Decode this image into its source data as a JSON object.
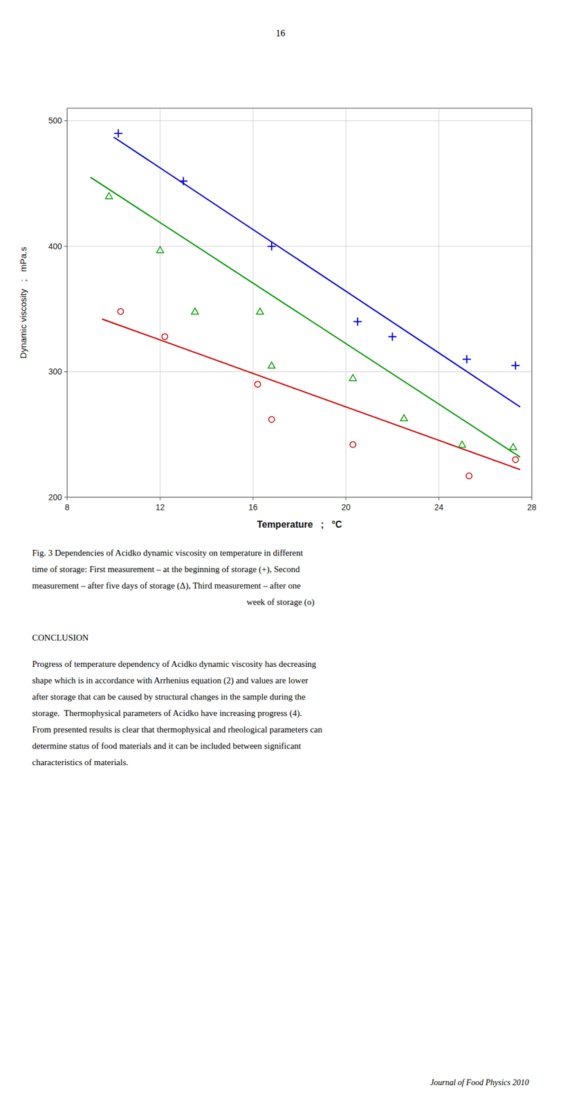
{
  "chart_data": {
    "type": "scatter",
    "xlabel": "Temperature   ;   °C",
    "ylabel": "Dynamic viscosity   ;   mPa.s",
    "xlim": [
      8,
      28
    ],
    "ylim": [
      200,
      510
    ],
    "xticks": [
      8,
      12,
      16,
      20,
      24,
      28
    ],
    "yticks": [
      200,
      300,
      400,
      500
    ],
    "grid": true,
    "series": [
      {
        "type": "line",
        "color": "#0000cc",
        "line_style": "solid",
        "x": [
          10.0,
          27.5
        ],
        "values": [
          487,
          272
        ]
      },
      {
        "type": "line",
        "color": "#009900",
        "line_style": "solid",
        "x": [
          9.0,
          27.5
        ],
        "values": [
          455,
          232
        ]
      },
      {
        "type": "line",
        "color": "#cc0000",
        "line_style": "solid",
        "x": [
          9.5,
          27.5
        ],
        "values": [
          342,
          222
        ]
      },
      {
        "type": "scatter",
        "color": "#0000cc",
        "marker": "plus",
        "x": [
          10.2,
          13.0,
          16.8,
          20.5,
          22.0,
          25.2,
          27.3
        ],
        "values": [
          490,
          452,
          400,
          340,
          328,
          310,
          305
        ]
      },
      {
        "type": "scatter",
        "color": "#009900",
        "marker": "triangle",
        "x": [
          9.8,
          12.0,
          13.5,
          16.3,
          16.8,
          20.3,
          22.5,
          25.0,
          27.2
        ],
        "values": [
          440,
          397,
          348,
          348,
          305,
          295,
          263,
          242,
          240
        ]
      },
      {
        "type": "scatter",
        "color": "#cc0000",
        "marker": "circle",
        "x": [
          10.3,
          12.2,
          16.2,
          16.8,
          20.3,
          25.3,
          27.3
        ],
        "values": [
          348,
          328,
          290,
          262,
          242,
          217,
          230
        ]
      }
    ],
    "annotations": [
      "16",
      "Fig. 3 Dependencies of Acidko dynamic viscosity on temperature in different",
      "time of storage: First measurement – at the beginning of storage (+), Second",
      "measurement – after five days of storage (Δ), Third measurement – after one",
      "week of storage (o)",
      "CONCLUSION",
      "Progress of temperature dependency of Acidko dynamic viscosity has decreasing",
      "shape which is in accordance with Arrhenius equation (2) and values are lower",
      "after storage that can be caused by structural changes in the sample during the",
      "storage.  Thermophysical parameters of Acidko have increasing progress (4).",
      "From presented results is clear that thermophysical and rheological parameters can",
      "determine status of food materials and it can be included between significant",
      "characteristics of materials.",
      "Journal of Food Physics 2010"
    ]
  }
}
